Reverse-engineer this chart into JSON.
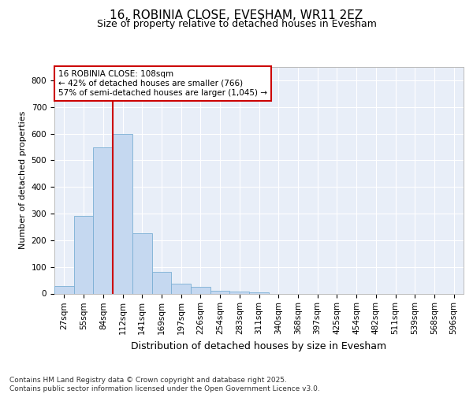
{
  "title_line1": "16, ROBINIA CLOSE, EVESHAM, WR11 2EZ",
  "title_line2": "Size of property relative to detached houses in Evesham",
  "xlabel": "Distribution of detached houses by size in Evesham",
  "ylabel": "Number of detached properties",
  "categories": [
    "27sqm",
    "55sqm",
    "84sqm",
    "112sqm",
    "141sqm",
    "169sqm",
    "197sqm",
    "226sqm",
    "254sqm",
    "283sqm",
    "311sqm",
    "340sqm",
    "368sqm",
    "397sqm",
    "425sqm",
    "454sqm",
    "482sqm",
    "511sqm",
    "539sqm",
    "568sqm",
    "596sqm"
  ],
  "values": [
    27,
    292,
    547,
    600,
    225,
    82,
    38,
    25,
    11,
    7,
    4,
    0,
    0,
    0,
    0,
    0,
    0,
    0,
    0,
    0,
    0
  ],
  "bar_color": "#c5d8f0",
  "bar_edge_color": "#7bafd4",
  "vline_color": "#cc0000",
  "vline_x_index": 3,
  "ylim": [
    0,
    850
  ],
  "yticks": [
    0,
    100,
    200,
    300,
    400,
    500,
    600,
    700,
    800
  ],
  "annotation_text": "16 ROBINIA CLOSE: 108sqm\n← 42% of detached houses are smaller (766)\n57% of semi-detached houses are larger (1,045) →",
  "annotation_box_facecolor": "#ffffff",
  "annotation_box_edgecolor": "#cc0000",
  "footer_text": "Contains HM Land Registry data © Crown copyright and database right 2025.\nContains public sector information licensed under the Open Government Licence v3.0.",
  "fig_bg_color": "#ffffff",
  "plot_bg_color": "#e8eef8",
  "grid_color": "#ffffff",
  "title1_fontsize": 11,
  "title2_fontsize": 9,
  "ylabel_fontsize": 8,
  "xlabel_fontsize": 9,
  "tick_fontsize": 7.5,
  "annot_fontsize": 7.5,
  "footer_fontsize": 6.5
}
